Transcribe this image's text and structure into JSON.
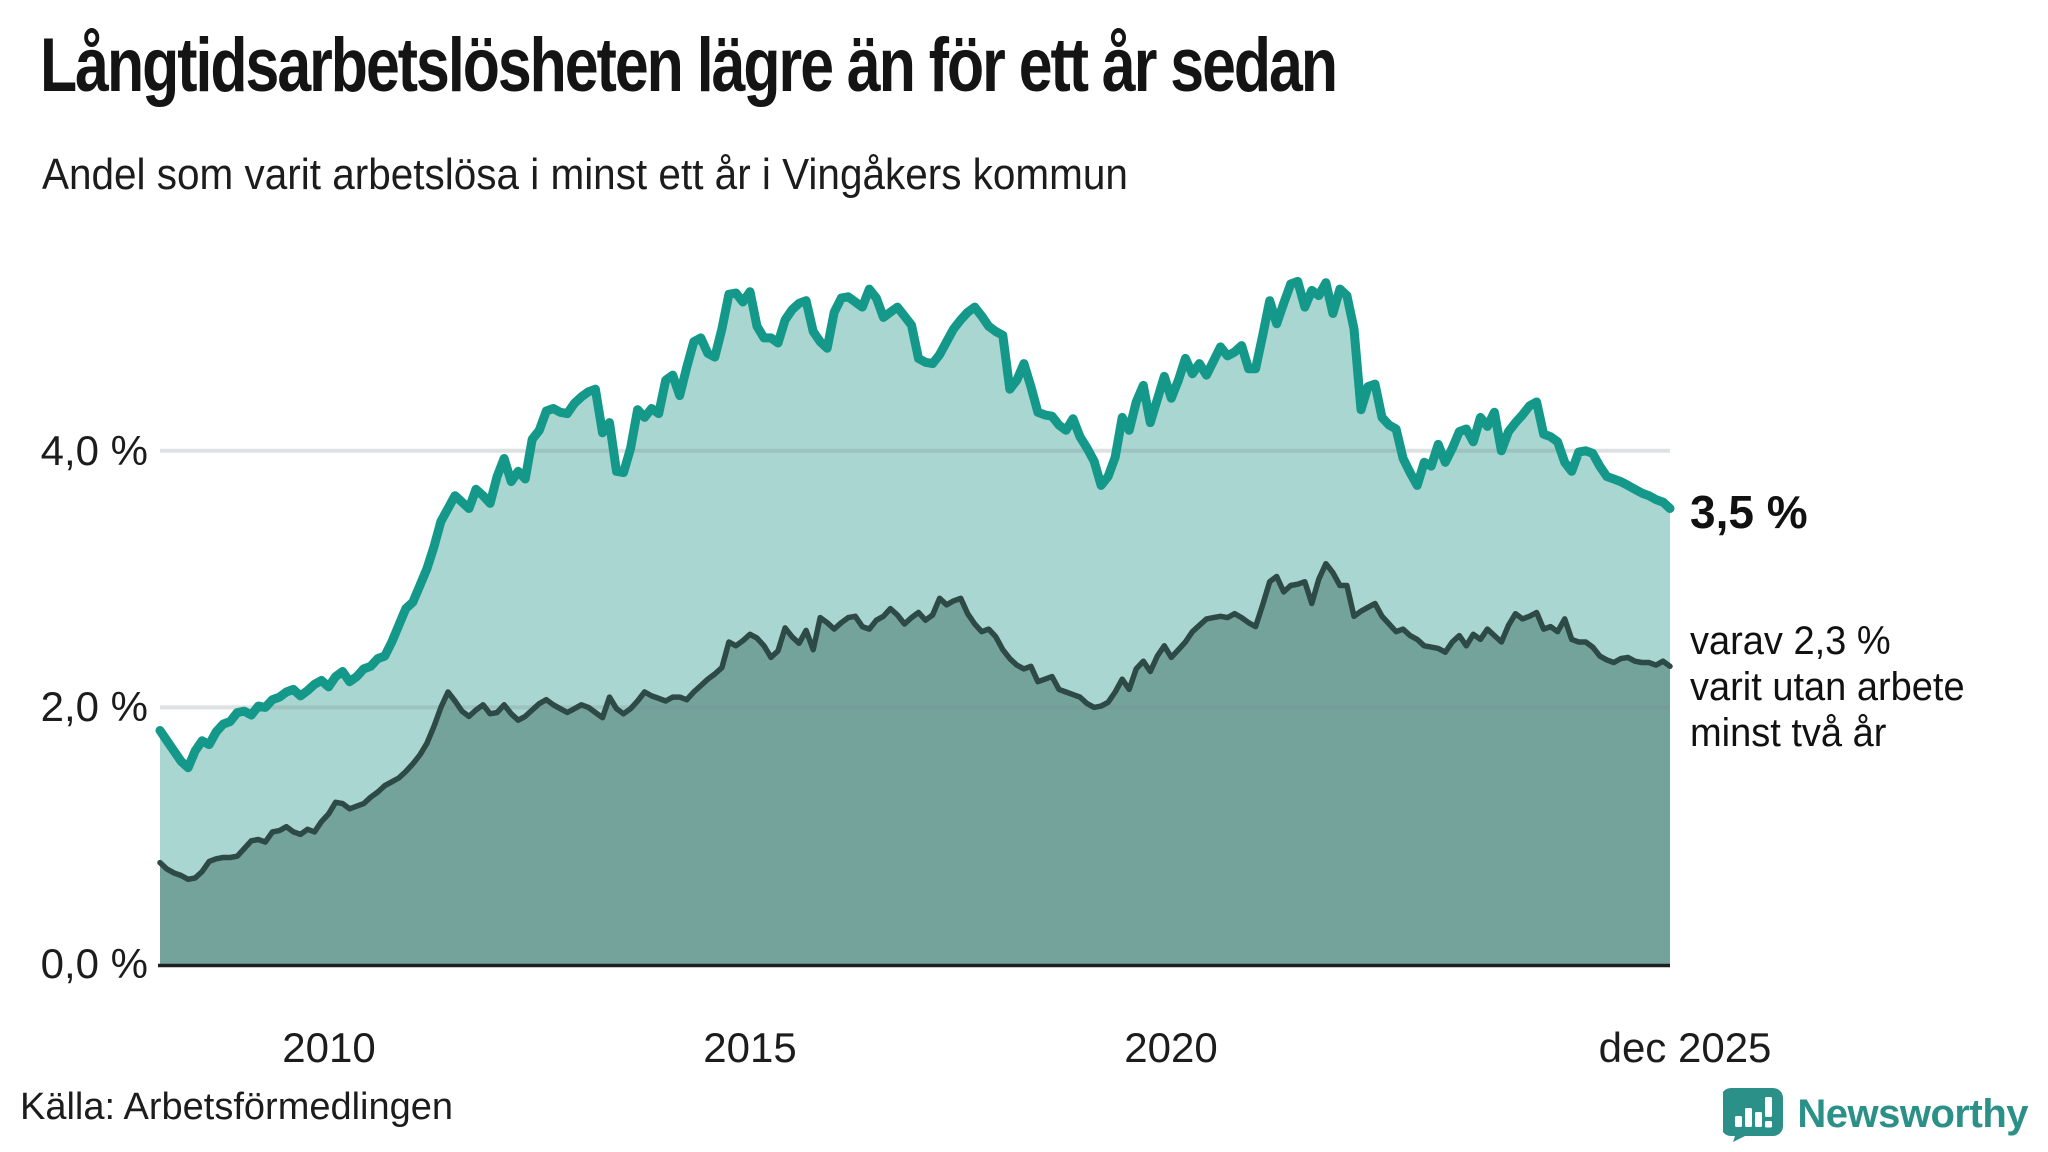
{
  "header": {
    "title": "Långtidsarbetslösheten lägre än för ett år sedan",
    "subtitle": "Andel som varit arbetslösa i minst ett år i Vingåkers kommun"
  },
  "annotations": {
    "latest_value_label": "3,5 %",
    "secondary_line1": "varav 2,3 %",
    "secondary_line2": "varit utan arbete",
    "secondary_line3": "minst två år"
  },
  "footer": {
    "source": "Källa: Arbetsförmedlingen",
    "brand_name": "Newsworthy"
  },
  "colors": {
    "line_primary": "#149889",
    "fill_primary": "#a9d6d0",
    "line_secondary": "#2d4a46",
    "fill_secondary": "#74a39c",
    "axis": "#1f1f1f",
    "gridline": "rgba(125,135,140,0.25)",
    "brand_teal": "#2b9087",
    "text": "#1c1c1c"
  },
  "chart_data": {
    "type": "area",
    "title": "Andel som varit arbetslösa i minst ett år i Vingåkers kommun",
    "unit": "%",
    "x_start": "2008-01",
    "x_end": "2025-12",
    "frequency": "monthly",
    "ylim": [
      0,
      5.6
    ],
    "grid": "horizontal",
    "y_ticks": [
      {
        "value": 0.0,
        "label": "0,0 %"
      },
      {
        "value": 2.0,
        "label": "2,0 %"
      },
      {
        "value": 4.0,
        "label": "4,0 %"
      }
    ],
    "x_ticks": [
      {
        "month_index": 24,
        "label": "2010"
      },
      {
        "month_index": 84,
        "label": "2015"
      },
      {
        "month_index": 144,
        "label": "2020"
      },
      {
        "month_index": 215,
        "label": "dec 2025"
      }
    ],
    "series": [
      {
        "name": "Arbetslösa minst ett år",
        "end_label": "3,5 %",
        "values": [
          1.82,
          1.74,
          1.66,
          1.58,
          1.53,
          1.66,
          1.74,
          1.71,
          1.81,
          1.87,
          1.89,
          1.96,
          1.97,
          1.94,
          2.01,
          2.0,
          2.06,
          2.08,
          2.12,
          2.14,
          2.09,
          2.13,
          2.18,
          2.21,
          2.16,
          2.24,
          2.28,
          2.2,
          2.24,
          2.3,
          2.32,
          2.38,
          2.4,
          2.51,
          2.64,
          2.77,
          2.82,
          2.95,
          3.08,
          3.25,
          3.45,
          3.55,
          3.65,
          3.6,
          3.55,
          3.7,
          3.65,
          3.59,
          3.8,
          3.94,
          3.76,
          3.84,
          3.78,
          4.09,
          4.16,
          4.31,
          4.33,
          4.3,
          4.29,
          4.37,
          4.42,
          4.46,
          4.48,
          4.14,
          4.22,
          3.84,
          3.83,
          4.02,
          4.32,
          4.26,
          4.33,
          4.29,
          4.55,
          4.59,
          4.43,
          4.65,
          4.85,
          4.88,
          4.76,
          4.73,
          4.95,
          5.22,
          5.23,
          5.16,
          5.24,
          4.97,
          4.88,
          4.88,
          4.84,
          5.02,
          5.1,
          5.15,
          5.17,
          4.93,
          4.85,
          4.8,
          5.08,
          5.19,
          5.2,
          5.16,
          5.12,
          5.26,
          5.19,
          5.04,
          5.08,
          5.12,
          5.05,
          4.98,
          4.72,
          4.69,
          4.68,
          4.75,
          4.85,
          4.95,
          5.02,
          5.08,
          5.12,
          5.05,
          4.97,
          4.93,
          4.9,
          4.48,
          4.55,
          4.68,
          4.5,
          4.3,
          4.28,
          4.27,
          4.2,
          4.16,
          4.25,
          4.11,
          4.02,
          3.92,
          3.73,
          3.8,
          3.95,
          4.26,
          4.16,
          4.38,
          4.51,
          4.22,
          4.4,
          4.58,
          4.41,
          4.55,
          4.72,
          4.6,
          4.68,
          4.59,
          4.7,
          4.81,
          4.74,
          4.77,
          4.82,
          4.64,
          4.64,
          4.9,
          5.17,
          4.99,
          5.15,
          5.3,
          5.32,
          5.12,
          5.25,
          5.21,
          5.31,
          5.07,
          5.26,
          5.21,
          4.95,
          4.32,
          4.5,
          4.52,
          4.26,
          4.2,
          4.17,
          3.94,
          3.83,
          3.73,
          3.91,
          3.88,
          4.05,
          3.91,
          4.02,
          4.15,
          4.17,
          4.07,
          4.26,
          4.19,
          4.3,
          4.0,
          4.15,
          4.22,
          4.28,
          4.35,
          4.38,
          4.13,
          4.11,
          4.07,
          3.91,
          3.84,
          3.99,
          4.0,
          3.98,
          3.88,
          3.8,
          3.78,
          3.76,
          3.73,
          3.7,
          3.67,
          3.65,
          3.62,
          3.6,
          3.55
        ]
      },
      {
        "name": "varav utan arbete minst två år",
        "end_label": "2,3 %",
        "values": [
          0.79,
          0.74,
          0.71,
          0.69,
          0.66,
          0.67,
          0.72,
          0.8,
          0.82,
          0.83,
          0.83,
          0.84,
          0.9,
          0.96,
          0.97,
          0.95,
          1.03,
          1.04,
          1.07,
          1.03,
          1.01,
          1.05,
          1.03,
          1.11,
          1.17,
          1.26,
          1.25,
          1.21,
          1.23,
          1.25,
          1.3,
          1.34,
          1.39,
          1.42,
          1.45,
          1.5,
          1.56,
          1.63,
          1.72,
          1.85,
          2.0,
          2.12,
          2.05,
          1.97,
          1.93,
          1.98,
          2.02,
          1.95,
          1.96,
          2.02,
          1.95,
          1.9,
          1.93,
          1.98,
          2.03,
          2.06,
          2.02,
          1.99,
          1.96,
          1.99,
          2.02,
          2.0,
          1.96,
          1.92,
          2.08,
          1.99,
          1.95,
          1.99,
          2.05,
          2.12,
          2.09,
          2.07,
          2.05,
          2.08,
          2.08,
          2.06,
          2.12,
          2.17,
          2.22,
          2.26,
          2.31,
          2.51,
          2.48,
          2.52,
          2.57,
          2.54,
          2.48,
          2.39,
          2.44,
          2.62,
          2.55,
          2.5,
          2.6,
          2.45,
          2.7,
          2.66,
          2.61,
          2.66,
          2.7,
          2.71,
          2.63,
          2.61,
          2.68,
          2.71,
          2.77,
          2.72,
          2.65,
          2.7,
          2.74,
          2.68,
          2.72,
          2.85,
          2.8,
          2.83,
          2.85,
          2.73,
          2.65,
          2.59,
          2.61,
          2.55,
          2.45,
          2.38,
          2.33,
          2.3,
          2.32,
          2.2,
          2.22,
          2.24,
          2.14,
          2.12,
          2.1,
          2.08,
          2.03,
          2.0,
          2.01,
          2.04,
          2.12,
          2.22,
          2.14,
          2.3,
          2.36,
          2.28,
          2.4,
          2.48,
          2.39,
          2.45,
          2.51,
          2.59,
          2.64,
          2.69,
          2.7,
          2.71,
          2.7,
          2.73,
          2.7,
          2.66,
          2.63,
          2.8,
          2.98,
          3.02,
          2.9,
          2.95,
          2.96,
          2.98,
          2.81,
          3.0,
          3.12,
          3.05,
          2.95,
          2.95,
          2.71,
          2.75,
          2.78,
          2.81,
          2.71,
          2.65,
          2.59,
          2.61,
          2.56,
          2.53,
          2.48,
          2.47,
          2.46,
          2.43,
          2.51,
          2.56,
          2.48,
          2.57,
          2.53,
          2.61,
          2.56,
          2.51,
          2.64,
          2.73,
          2.69,
          2.71,
          2.74,
          2.61,
          2.63,
          2.59,
          2.69,
          2.53,
          2.51,
          2.51,
          2.47,
          2.4,
          2.37,
          2.35,
          2.38,
          2.39,
          2.36,
          2.35,
          2.35,
          2.33,
          2.36,
          2.32
        ]
      }
    ]
  }
}
